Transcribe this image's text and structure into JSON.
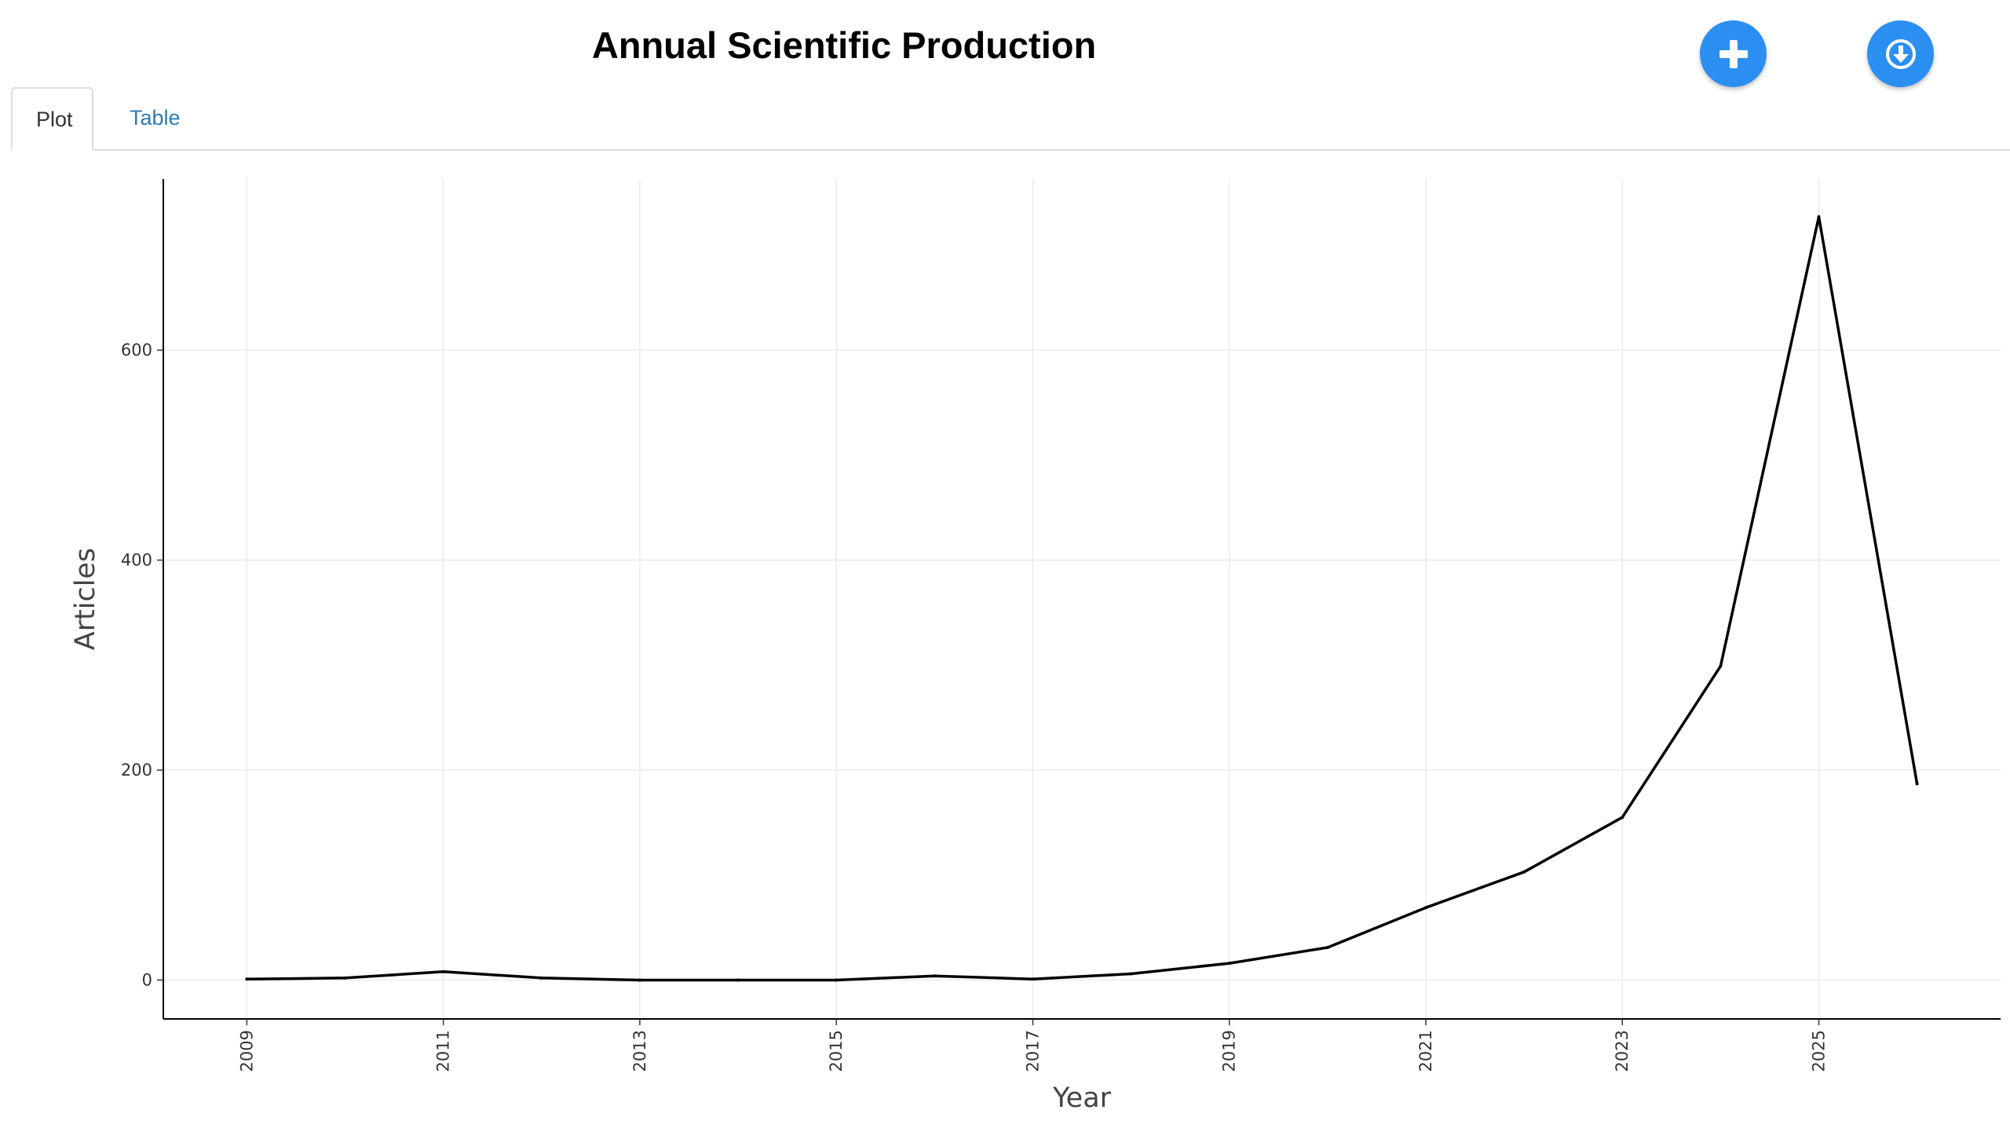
{
  "header": {
    "title": "Annual Scientific Production"
  },
  "actions": {
    "add_icon": "plus-icon",
    "download_icon": "download-circle-icon",
    "accent_color": "#2b8ff2"
  },
  "tabs": [
    {
      "label": "Plot",
      "active": true
    },
    {
      "label": "Table",
      "active": false
    }
  ],
  "chart_data": {
    "type": "line",
    "title": "",
    "xlabel": "Year",
    "ylabel": "Articles",
    "x": [
      2009,
      2010,
      2011,
      2012,
      2013,
      2014,
      2015,
      2016,
      2017,
      2018,
      2019,
      2020,
      2021,
      2022,
      2023,
      2024,
      2025,
      2026
    ],
    "series": [
      {
        "values": [
          1,
          2,
          8,
          2,
          0,
          0,
          0,
          4,
          1,
          6,
          16,
          31,
          69,
          103,
          155,
          299,
          727,
          187
        ]
      }
    ],
    "xticks": [
      "2009",
      "2011",
      "2013",
      "2015",
      "2017",
      "2019",
      "2021",
      "2023",
      "2025"
    ],
    "yticks": [
      "0",
      "200",
      "400",
      "600"
    ],
    "xlim": [
      2008.15,
      2026.85
    ],
    "ylim": [
      -37,
      763
    ],
    "grid": true,
    "line_color": "#000000"
  }
}
